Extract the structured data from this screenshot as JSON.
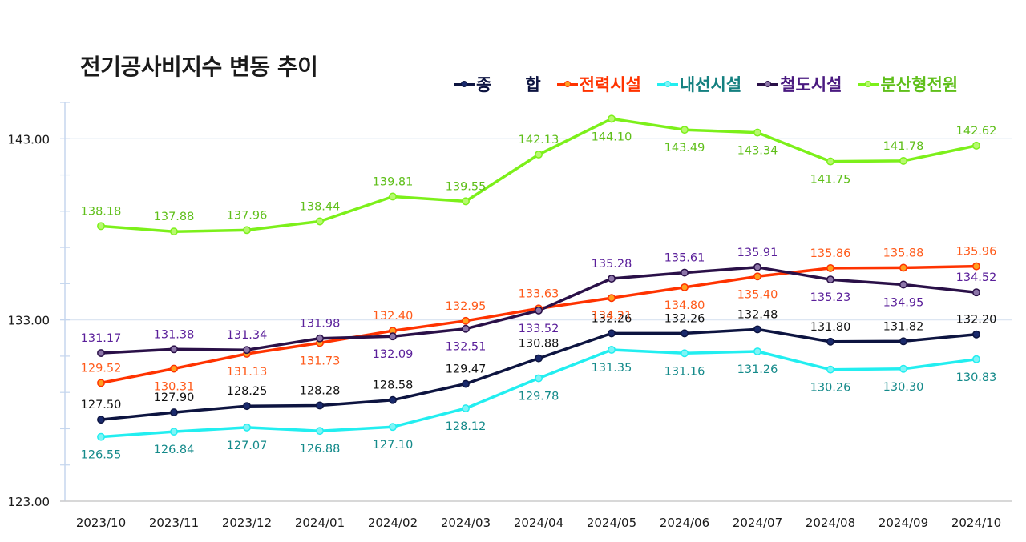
{
  "chart_data": {
    "type": "line",
    "title": "전기공사비지수 변동 추이",
    "xlabel": "",
    "ylabel": "",
    "ylim": [
      123,
      145
    ],
    "yticks": [
      "123.00",
      "133.00",
      "143.00"
    ],
    "ytick_values": [
      123,
      133,
      143
    ],
    "minor_tick_step": 2,
    "grid": "horizontal at major ticks",
    "legend_position": "top-right",
    "categories": [
      "2023/10",
      "2023/11",
      "2023/12",
      "2024/01",
      "2024/02",
      "2024/03",
      "2024/04",
      "2024/05",
      "2024/06",
      "2024/07",
      "2024/08",
      "2024/09",
      "2024/10"
    ],
    "series": [
      {
        "name": "종　합",
        "color": "#0d1440",
        "marker_fill": "#1a2a6c",
        "label_color": "#111111",
        "values": [
          127.5,
          127.9,
          128.25,
          128.28,
          128.58,
          129.47,
          130.88,
          132.26,
          132.26,
          132.48,
          131.8,
          131.82,
          132.2
        ],
        "labels": [
          "127.50",
          "127.90",
          "128.25",
          "128.28",
          "128.58",
          "129.47",
          "130.88",
          "132.26",
          "132.26",
          "132.48",
          "131.80",
          "131.82",
          "132.20"
        ],
        "label_side": [
          "above",
          "above",
          "above",
          "above",
          "above",
          "above",
          "above",
          "above",
          "above",
          "above",
          "above",
          "above",
          "above"
        ]
      },
      {
        "name": "전력시설",
        "color": "#ff3300",
        "marker_fill": "#ffa020",
        "label_color": "#ff5a1a",
        "values": [
          129.52,
          130.31,
          131.13,
          131.73,
          132.4,
          132.95,
          133.63,
          134.21,
          134.8,
          135.4,
          135.86,
          135.88,
          135.96
        ],
        "labels": [
          "129.52",
          "130.31",
          "131.13",
          "131.73",
          "132.40",
          "132.95",
          "133.63",
          "134.21",
          "134.80",
          "135.40",
          "135.86",
          "135.88",
          "135.96"
        ],
        "label_side": [
          "above",
          "below",
          "below",
          "below",
          "above",
          "above",
          "above",
          "below",
          "below",
          "below",
          "above",
          "above",
          "above"
        ]
      },
      {
        "name": "내선시설",
        "color": "#22eef0",
        "marker_fill": "#80f4f6",
        "label_color": "#148a8a",
        "values": [
          126.55,
          126.84,
          127.07,
          126.88,
          127.1,
          128.12,
          129.78,
          131.35,
          131.16,
          131.26,
          130.26,
          130.3,
          130.83
        ],
        "labels": [
          "126.55",
          "126.84",
          "127.07",
          "126.88",
          "127.10",
          "128.12",
          "129.78",
          "131.35",
          "131.16",
          "131.26",
          "130.26",
          "130.30",
          "130.83"
        ],
        "label_side": [
          "below",
          "below",
          "below",
          "below",
          "below",
          "below",
          "below",
          "below",
          "below",
          "below",
          "below",
          "below",
          "below"
        ]
      },
      {
        "name": "철도시설",
        "color": "#2a1048",
        "marker_fill": "#8c75a8",
        "label_color": "#5a1f9a",
        "values": [
          131.17,
          131.38,
          131.34,
          131.98,
          132.09,
          132.51,
          133.52,
          135.28,
          135.61,
          135.91,
          135.23,
          134.95,
          134.52
        ],
        "labels": [
          "131.17",
          "131.38",
          "131.34",
          "131.98",
          "132.09",
          "132.51",
          "133.52",
          "135.28",
          "135.61",
          "135.91",
          "135.23",
          "134.95",
          "134.52"
        ],
        "label_side": [
          "above",
          "above",
          "above",
          "above",
          "below",
          "below",
          "below",
          "above",
          "above",
          "above",
          "below",
          "below",
          "above"
        ]
      },
      {
        "name": "분산형전원",
        "color": "#7cf01a",
        "marker_fill": "#b8f870",
        "label_color": "#5fbf1a",
        "values": [
          138.18,
          137.88,
          137.96,
          138.44,
          139.81,
          139.55,
          142.13,
          144.1,
          143.49,
          143.34,
          141.75,
          141.78,
          142.62
        ],
        "labels": [
          "138.18",
          "137.88",
          "137.96",
          "138.44",
          "139.81",
          "139.55",
          "142.13",
          "144.10",
          "143.49",
          "143.34",
          "141.75",
          "141.78",
          "142.62"
        ],
        "label_side": [
          "above",
          "above",
          "above",
          "above",
          "above",
          "above",
          "above",
          "below",
          "below",
          "below",
          "below",
          "above",
          "above"
        ]
      }
    ]
  },
  "legend": {
    "items": [
      {
        "label": "종　　합",
        "color": "#0d1440",
        "marker": "#1a2a6c",
        "text_color": "#0d1440"
      },
      {
        "label": "전력시설",
        "color": "#ff3300",
        "marker": "#ffa020",
        "text_color": "#ff3300"
      },
      {
        "label": "내선시설",
        "color": "#22eef0",
        "marker": "#80f4f6",
        "text_color": "#148080"
      },
      {
        "label": "철도시설",
        "color": "#2a1048",
        "marker": "#8c75a8",
        "text_color": "#4a1a80"
      },
      {
        "label": "분산형전원",
        "color": "#7cf01a",
        "marker": "#b8f870",
        "text_color": "#5fbf1a"
      }
    ]
  },
  "colors": {
    "axis": "#c5d6ee",
    "grid": "#dde6f2",
    "baseline": "#cccccc"
  }
}
